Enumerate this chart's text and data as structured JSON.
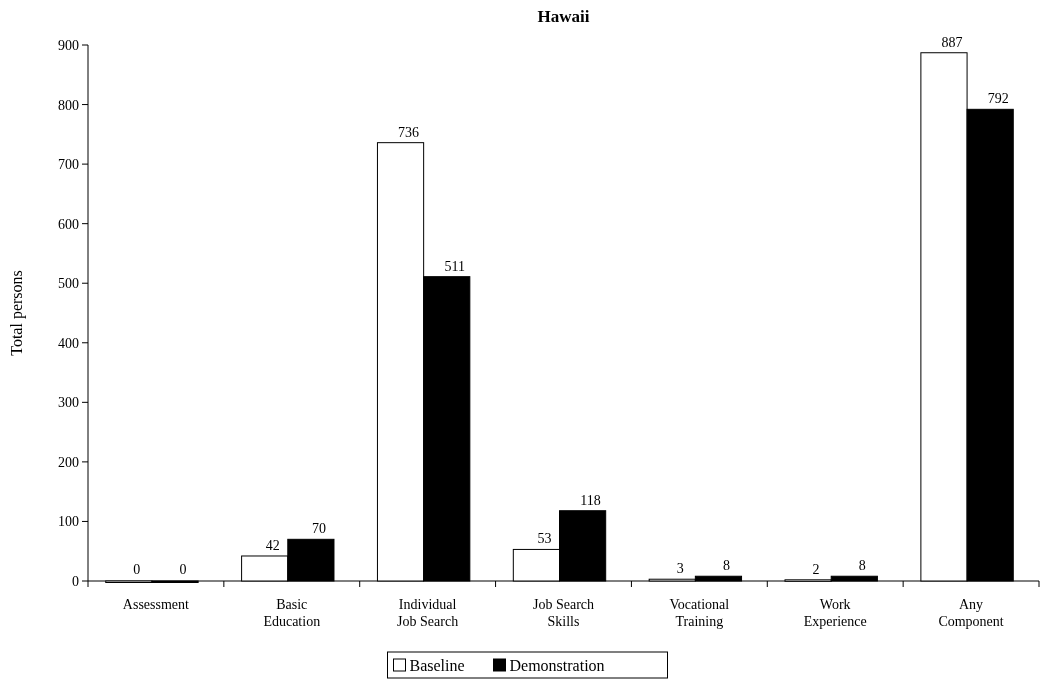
{
  "chart_data": {
    "type": "bar",
    "title": "Hawaii",
    "ylabel": "Total persons",
    "categories": [
      "Assessment",
      "Basic\nEducation",
      "Individual\nJob Search",
      "Job Search\nSkills",
      "Vocational\nTraining",
      "Work\nExperience",
      "Any\nComponent"
    ],
    "series": [
      {
        "name": "Baseline",
        "color": "#ffffff",
        "values": [
          0,
          42,
          736,
          53,
          3,
          2,
          887
        ]
      },
      {
        "name": "Demonstration",
        "color": "#000000",
        "values": [
          0,
          70,
          511,
          118,
          8,
          8,
          792
        ]
      }
    ],
    "ylim": [
      0,
      900
    ],
    "yticks": [
      0,
      100,
      200,
      300,
      400,
      500,
      600,
      700,
      800,
      900
    ],
    "data_labels": true,
    "grid": false,
    "legend": "bottom"
  }
}
